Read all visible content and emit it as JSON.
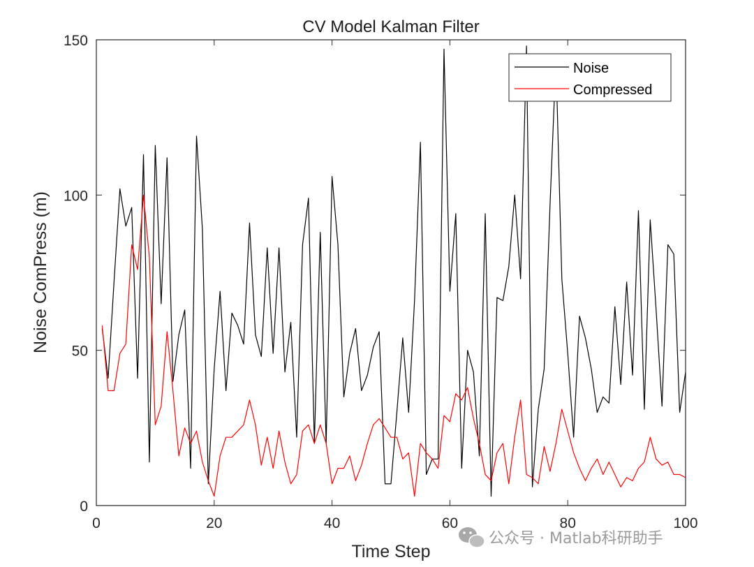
{
  "chart_data": {
    "type": "line",
    "title": "CV Model Kalman Filter",
    "xlabel": "Time Step",
    "ylabel": "Noise ComPress (m)",
    "xlim": [
      0,
      100
    ],
    "ylim": [
      0,
      150
    ],
    "xticks": [
      0,
      20,
      40,
      60,
      80,
      100
    ],
    "yticks": [
      0,
      50,
      100,
      150
    ],
    "legend_position": "top-right",
    "x": [
      1,
      2,
      3,
      4,
      5,
      6,
      7,
      8,
      9,
      10,
      11,
      12,
      13,
      14,
      15,
      16,
      17,
      18,
      19,
      20,
      21,
      22,
      23,
      24,
      25,
      26,
      27,
      28,
      29,
      30,
      31,
      32,
      33,
      34,
      35,
      36,
      37,
      38,
      39,
      40,
      41,
      42,
      43,
      44,
      45,
      46,
      47,
      48,
      49,
      50,
      51,
      52,
      53,
      54,
      55,
      56,
      57,
      58,
      59,
      60,
      61,
      62,
      63,
      64,
      65,
      66,
      67,
      68,
      69,
      70,
      71,
      72,
      73,
      74,
      75,
      76,
      77,
      78,
      79,
      80,
      81,
      82,
      83,
      84,
      85,
      86,
      87,
      88,
      89,
      90,
      91,
      92,
      93,
      94,
      95,
      96,
      97,
      98,
      99,
      100
    ],
    "series": [
      {
        "name": "Noise",
        "color": "#000000",
        "values": [
          57,
          41,
          72,
          102,
          90,
          96,
          41,
          113,
          14,
          116,
          65,
          112,
          40,
          55,
          63,
          12,
          119,
          89,
          7,
          44,
          69,
          37,
          62,
          58,
          52,
          91,
          55,
          48,
          83,
          49,
          83,
          43,
          59,
          22,
          84,
          99,
          20,
          88,
          20,
          106,
          84,
          35,
          49,
          57,
          37,
          42,
          51,
          56,
          7,
          7,
          30,
          54,
          30,
          66,
          117,
          10,
          15,
          15,
          147,
          69,
          94,
          12,
          50,
          43,
          16,
          94,
          3,
          67,
          66,
          77,
          100,
          73,
          148,
          6,
          31,
          44,
          97,
          144,
          73,
          49,
          22,
          61,
          54,
          44,
          30,
          35,
          33,
          64,
          39,
          72,
          42,
          95,
          31,
          92,
          63,
          32,
          84,
          81,
          30,
          43
        ]
      },
      {
        "name": "Compressed",
        "color": "#ff0000",
        "values": [
          58,
          37,
          37,
          49,
          52,
          84,
          76,
          100,
          80,
          26,
          32,
          56,
          37,
          16,
          25,
          20,
          24,
          14,
          8,
          3,
          16,
          22,
          22,
          24,
          26,
          34,
          26,
          13,
          22,
          12,
          24,
          14,
          7,
          10,
          24,
          26,
          20,
          26,
          20,
          7,
          12,
          12,
          16,
          8,
          13,
          20,
          26,
          28,
          25,
          22,
          22,
          15,
          17,
          3,
          20,
          17,
          15,
          12,
          29,
          27,
          36,
          34,
          38,
          28,
          20,
          10,
          8,
          17,
          20,
          7,
          22,
          34,
          10,
          9,
          7,
          19,
          11,
          20,
          31,
          24,
          17,
          12,
          8,
          12,
          15,
          10,
          14,
          10,
          6,
          9,
          8,
          12,
          14,
          22,
          15,
          13,
          14,
          10,
          10,
          9
        ]
      }
    ]
  },
  "watermark": {
    "text": "公众号 · Matlab科研助手",
    "icon": "wechat-icon"
  }
}
